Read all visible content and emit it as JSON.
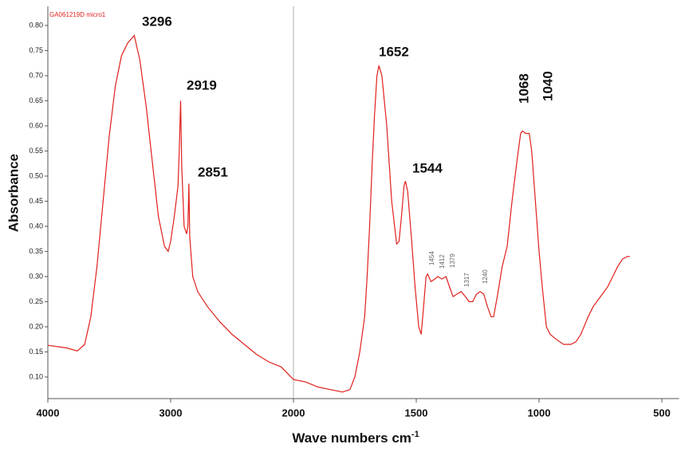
{
  "chart_data": {
    "type": "line",
    "title": "GA061219D micro1",
    "ylabel": "Absorbance",
    "xlabel": {
      "text": "Wave numbers cm",
      "superscript": "-1"
    },
    "xlim": [
      4000,
      430
    ],
    "xticks": [
      4000,
      3000,
      2000,
      1500,
      1000,
      500
    ],
    "ylim": [
      0.057,
      0.838
    ],
    "yticks": [
      {
        "value": 0.1,
        "label": "0.10"
      },
      {
        "value": 0.15,
        "label": "0.15"
      },
      {
        "value": 0.2,
        "label": "0.20"
      },
      {
        "value": 0.25,
        "label": "0.25"
      },
      {
        "value": 0.3,
        "label": "0.30"
      },
      {
        "value": 0.35,
        "label": "0.35"
      },
      {
        "value": 0.4,
        "label": "0.40"
      },
      {
        "value": 0.45,
        "label": "0.45"
      },
      {
        "value": 0.5,
        "label": "0.50"
      },
      {
        "value": 0.55,
        "label": "0.55"
      },
      {
        "value": 0.6,
        "label": "0.60"
      },
      {
        "value": 0.65,
        "label": "0.65"
      },
      {
        "value": 0.7,
        "label": "0.70"
      },
      {
        "value": 0.75,
        "label": "0.75"
      },
      {
        "value": 0.8,
        "label": "0.80"
      }
    ],
    "annotations": [
      "3296",
      "2919",
      "2851",
      "1652",
      "1544",
      "1068",
      "1040",
      "1454",
      "1412",
      "1379",
      "1317",
      "1240"
    ],
    "series": [
      {
        "color": "#e0201c",
        "x": [
          4000,
          3850,
          3760,
          3700,
          3650,
          3600,
          3550,
          3500,
          3450,
          3400,
          3350,
          3296,
          3250,
          3200,
          3150,
          3100,
          3050,
          3020,
          3000,
          2970,
          2940,
          2930,
          2919,
          2910,
          2890,
          2870,
          2860,
          2851,
          2845,
          2820,
          2780,
          2700,
          2600,
          2500,
          2400,
          2300,
          2200,
          2100,
          2000,
          1950,
          1900,
          1850,
          1800,
          1770,
          1750,
          1730,
          1710,
          1700,
          1690,
          1680,
          1670,
          1660,
          1652,
          1640,
          1620,
          1600,
          1580,
          1570,
          1560,
          1550,
          1544,
          1535,
          1520,
          1505,
          1490,
          1480,
          1470,
          1460,
          1454,
          1440,
          1425,
          1412,
          1395,
          1379,
          1365,
          1350,
          1335,
          1317,
          1300,
          1285,
          1270,
          1255,
          1240,
          1225,
          1210,
          1195,
          1185,
          1170,
          1150,
          1130,
          1110,
          1090,
          1075,
          1068,
          1055,
          1040,
          1030,
          1015,
          1000,
          985,
          970,
          955,
          930,
          900,
          870,
          850,
          830,
          800,
          780,
          750,
          720,
          700,
          680,
          660,
          640,
          630
        ],
        "values": [
          0.163,
          0.158,
          0.152,
          0.165,
          0.22,
          0.32,
          0.45,
          0.58,
          0.68,
          0.74,
          0.765,
          0.78,
          0.73,
          0.64,
          0.53,
          0.42,
          0.36,
          0.35,
          0.37,
          0.42,
          0.48,
          0.55,
          0.65,
          0.52,
          0.4,
          0.385,
          0.4,
          0.485,
          0.38,
          0.3,
          0.27,
          0.24,
          0.21,
          0.185,
          0.165,
          0.145,
          0.13,
          0.12,
          0.095,
          0.09,
          0.08,
          0.075,
          0.07,
          0.075,
          0.1,
          0.15,
          0.22,
          0.3,
          0.4,
          0.52,
          0.62,
          0.7,
          0.72,
          0.7,
          0.6,
          0.45,
          0.365,
          0.37,
          0.42,
          0.48,
          0.49,
          0.47,
          0.38,
          0.28,
          0.2,
          0.185,
          0.24,
          0.3,
          0.305,
          0.29,
          0.295,
          0.3,
          0.295,
          0.3,
          0.28,
          0.26,
          0.265,
          0.27,
          0.26,
          0.25,
          0.25,
          0.265,
          0.27,
          0.265,
          0.24,
          0.22,
          0.22,
          0.26,
          0.32,
          0.36,
          0.45,
          0.53,
          0.585,
          0.59,
          0.585,
          0.585,
          0.55,
          0.45,
          0.35,
          0.27,
          0.2,
          0.185,
          0.175,
          0.165,
          0.165,
          0.17,
          0.185,
          0.22,
          0.24,
          0.26,
          0.28,
          0.3,
          0.32,
          0.335,
          0.34,
          0.34
        ]
      }
    ]
  }
}
